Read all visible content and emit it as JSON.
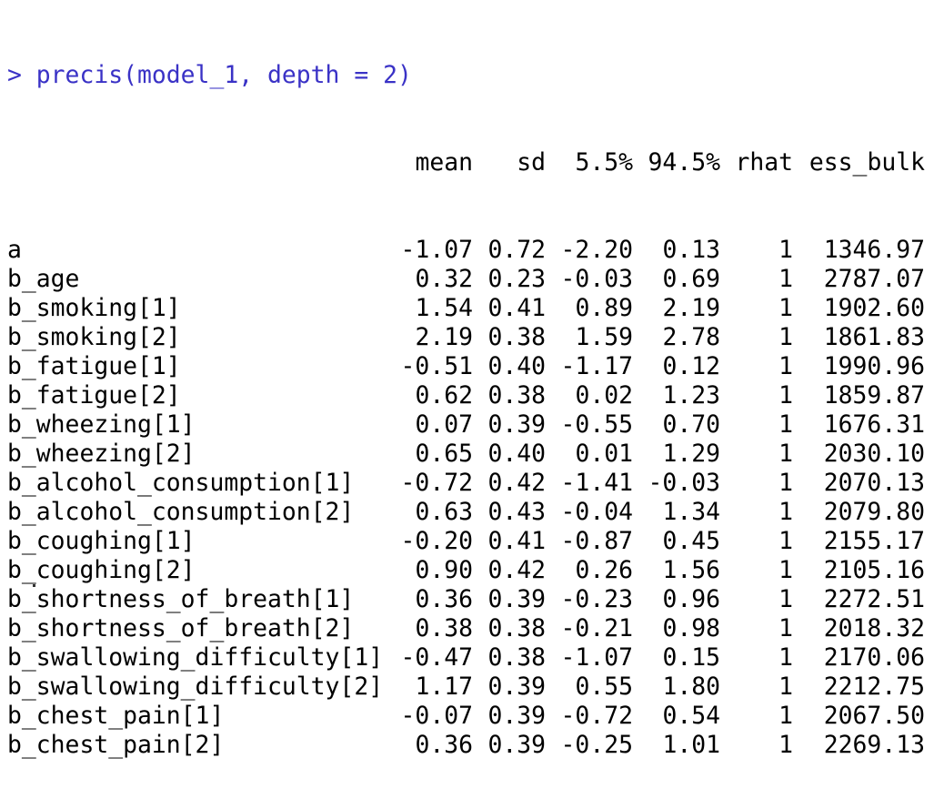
{
  "console": {
    "prompt": ">",
    "command": "precis(model_1, depth = 2)",
    "columns": [
      "mean",
      "sd",
      "5.5%",
      "94.5%",
      "rhat",
      "ess_bulk"
    ],
    "rows": [
      {
        "name": "a",
        "mean": "-1.07",
        "sd": "0.72",
        "p5": "-2.20",
        "p95": "0.13",
        "rhat": "1",
        "ess": "1346.97"
      },
      {
        "name": "b_age",
        "mean": "0.32",
        "sd": "0.23",
        "p5": "-0.03",
        "p95": "0.69",
        "rhat": "1",
        "ess": "2787.07"
      },
      {
        "name": "b_smoking[1]",
        "mean": "1.54",
        "sd": "0.41",
        "p5": "0.89",
        "p95": "2.19",
        "rhat": "1",
        "ess": "1902.60"
      },
      {
        "name": "b_smoking[2]",
        "mean": "2.19",
        "sd": "0.38",
        "p5": "1.59",
        "p95": "2.78",
        "rhat": "1",
        "ess": "1861.83"
      },
      {
        "name": "b_fatigue[1]",
        "mean": "-0.51",
        "sd": "0.40",
        "p5": "-1.17",
        "p95": "0.12",
        "rhat": "1",
        "ess": "1990.96"
      },
      {
        "name": "b_fatigue[2]",
        "mean": "0.62",
        "sd": "0.38",
        "p5": "0.02",
        "p95": "1.23",
        "rhat": "1",
        "ess": "1859.87"
      },
      {
        "name": "b_wheezing[1]",
        "mean": "0.07",
        "sd": "0.39",
        "p5": "-0.55",
        "p95": "0.70",
        "rhat": "1",
        "ess": "1676.31"
      },
      {
        "name": "b_wheezing[2]",
        "mean": "0.65",
        "sd": "0.40",
        "p5": "0.01",
        "p95": "1.29",
        "rhat": "1",
        "ess": "2030.10"
      },
      {
        "name": "b_alcohol_consumption[1]",
        "mean": "-0.72",
        "sd": "0.42",
        "p5": "-1.41",
        "p95": "-0.03",
        "rhat": "1",
        "ess": "2070.13"
      },
      {
        "name": "b_alcohol_consumption[2]",
        "mean": "0.63",
        "sd": "0.43",
        "p5": "-0.04",
        "p95": "1.34",
        "rhat": "1",
        "ess": "2079.80"
      },
      {
        "name": "b_coughing[1]",
        "mean": "-0.20",
        "sd": "0.41",
        "p5": "-0.87",
        "p95": "0.45",
        "rhat": "1",
        "ess": "2155.17"
      },
      {
        "name": "b_coughing[2]",
        "mean": "0.90",
        "sd": "0.42",
        "p5": "0.26",
        "p95": "1.56",
        "rhat": "1",
        "ess": "2105.16"
      },
      {
        "name": "b_shortness_of_breath[1]",
        "mean": "0.36",
        "sd": "0.39",
        "p5": "-0.23",
        "p95": "0.96",
        "rhat": "1",
        "ess": "2272.51"
      },
      {
        "name": "b_shortness_of_breath[2]",
        "mean": "0.38",
        "sd": "0.38",
        "p5": "-0.21",
        "p95": "0.98",
        "rhat": "1",
        "ess": "2018.32"
      },
      {
        "name": "b_swallowing_difficulty[1]",
        "mean": "-0.47",
        "sd": "0.38",
        "p5": "-1.07",
        "p95": "0.15",
        "rhat": "1",
        "ess": "2170.06"
      },
      {
        "name": "b_swallowing_difficulty[2]",
        "mean": "1.17",
        "sd": "0.39",
        "p5": "0.55",
        "p95": "1.80",
        "rhat": "1",
        "ess": "2212.75"
      },
      {
        "name": "b_chest_pain[1]",
        "mean": "-0.07",
        "sd": "0.39",
        "p5": "-0.72",
        "p95": "0.54",
        "rhat": "1",
        "ess": "2067.50"
      },
      {
        "name": "b_chest_pain[2]",
        "mean": "0.36",
        "sd": "0.39",
        "p5": "-0.25",
        "p95": "1.01",
        "rhat": "1",
        "ess": "2269.13"
      }
    ]
  }
}
